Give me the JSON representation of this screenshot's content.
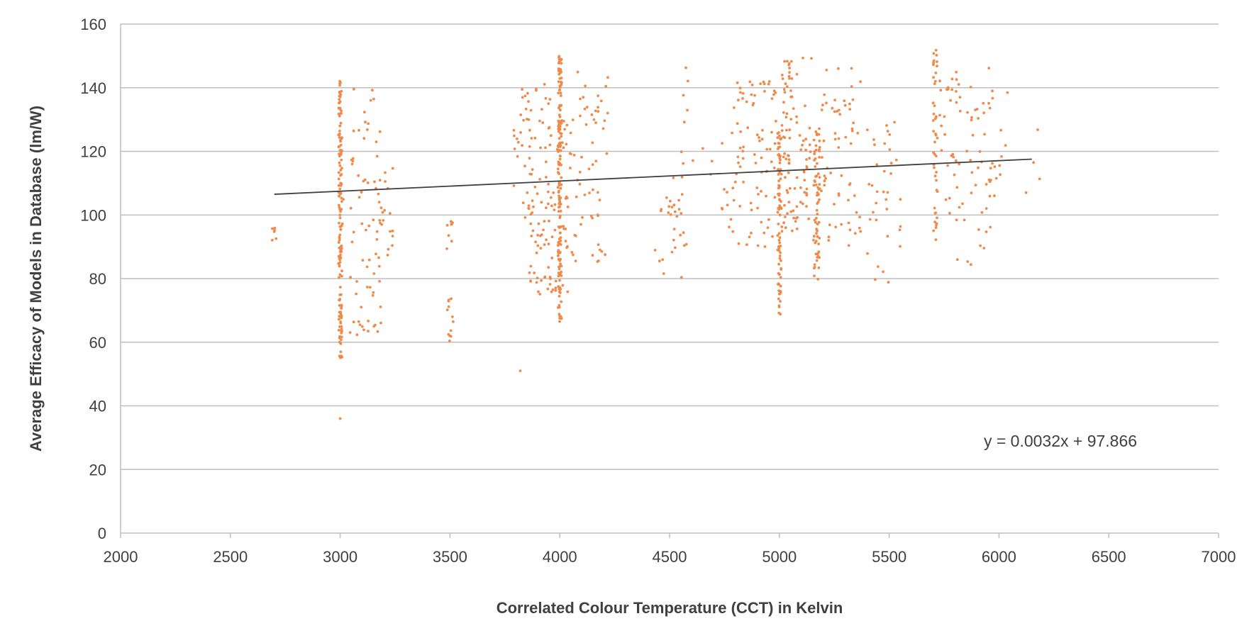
{
  "chart_data": {
    "type": "scatter",
    "xlabel": "Correlated Colour Temperature (CCT) in Kelvin",
    "ylabel": "Average Efficacy of Models in Database (lm/W)",
    "xlim": [
      2000,
      7000
    ],
    "ylim": [
      0,
      160
    ],
    "x_ticks": [
      "2000",
      "2500",
      "3000",
      "3500",
      "4000",
      "4500",
      "5000",
      "5500",
      "6000",
      "6500",
      "7000"
    ],
    "y_ticks": [
      "0",
      "20",
      "40",
      "60",
      "80",
      "100",
      "120",
      "140",
      "160"
    ],
    "grid": "horizontal",
    "legend": "none",
    "marker_color": "#f08a4b",
    "trendline": {
      "color": "#404040",
      "slope": 0.0032,
      "intercept": 97.866,
      "x_range": [
        2700,
        6150
      ],
      "equation_label": "y = 0.0032x + 97.866"
    },
    "clusters": [
      {
        "cct": 2700,
        "spread": 10,
        "min": 92,
        "max": 97,
        "count": 6
      },
      {
        "cct": 3000,
        "spread": 8,
        "min": 55,
        "max": 145,
        "count": 150
      },
      {
        "cct": 3000,
        "spread": 0,
        "min": 36,
        "max": 36,
        "count": 1
      },
      {
        "cct": 3100,
        "spread": 90,
        "min": 62,
        "max": 140,
        "count": 70
      },
      {
        "cct": 3200,
        "spread": 40,
        "min": 85,
        "max": 122,
        "count": 18
      },
      {
        "cct": 3500,
        "spread": 15,
        "min": 60,
        "max": 74,
        "count": 12
      },
      {
        "cct": 3500,
        "spread": 15,
        "min": 87,
        "max": 100,
        "count": 8
      },
      {
        "cct": 3830,
        "spread": 40,
        "min": 95,
        "max": 140,
        "count": 30
      },
      {
        "cct": 3820,
        "spread": 0,
        "min": 51,
        "max": 51,
        "count": 1
      },
      {
        "cct": 4000,
        "spread": 8,
        "min": 66,
        "max": 150,
        "count": 160
      },
      {
        "cct": 3950,
        "spread": 90,
        "min": 75,
        "max": 142,
        "count": 110
      },
      {
        "cct": 4130,
        "spread": 90,
        "min": 85,
        "max": 145,
        "count": 60
      },
      {
        "cct": 4500,
        "spread": 70,
        "min": 80,
        "max": 115,
        "count": 25
      },
      {
        "cct": 4650,
        "spread": 120,
        "min": 88,
        "max": 148,
        "count": 22
      },
      {
        "cct": 4900,
        "spread": 130,
        "min": 90,
        "max": 142,
        "count": 90
      },
      {
        "cct": 5000,
        "spread": 8,
        "min": 68,
        "max": 126,
        "count": 80
      },
      {
        "cct": 5080,
        "spread": 70,
        "min": 95,
        "max": 150,
        "count": 90
      },
      {
        "cct": 5170,
        "spread": 15,
        "min": 79,
        "max": 128,
        "count": 70
      },
      {
        "cct": 5280,
        "spread": 90,
        "min": 90,
        "max": 148,
        "count": 60
      },
      {
        "cct": 5480,
        "spread": 80,
        "min": 77,
        "max": 130,
        "count": 35
      },
      {
        "cct": 5710,
        "spread": 10,
        "min": 92,
        "max": 152,
        "count": 45
      },
      {
        "cct": 5850,
        "spread": 120,
        "min": 84,
        "max": 147,
        "count": 70
      },
      {
        "cct": 6000,
        "spread": 50,
        "min": 101,
        "max": 140,
        "count": 15
      },
      {
        "cct": 6150,
        "spread": 40,
        "min": 104,
        "max": 131,
        "count": 4
      }
    ]
  }
}
